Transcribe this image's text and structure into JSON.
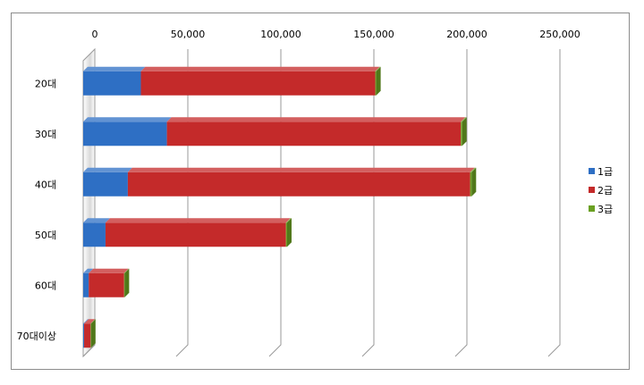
{
  "chart_data": {
    "type": "bar",
    "orientation": "horizontal",
    "stacked": true,
    "three_d": true,
    "categories": [
      "20대",
      "30대",
      "40대",
      "50대",
      "60대",
      "70대이상"
    ],
    "series": [
      {
        "name": "1급",
        "color": "#2e6fc4",
        "values": [
          31000,
          45000,
          24000,
          12000,
          3000,
          500
        ]
      },
      {
        "name": "2급",
        "color": "#c42a2a",
        "values": [
          126000,
          158000,
          184000,
          97000,
          19000,
          3500
        ]
      },
      {
        "name": "3급",
        "color": "#6aa022",
        "values": [
          500,
          700,
          800,
          600,
          300,
          100
        ]
      }
    ],
    "x_ticks": [
      "0",
      "50,000",
      "100,000",
      "150,000",
      "200,000",
      "250,000"
    ],
    "xlim": [
      0,
      250000
    ],
    "x_axis_position": "top",
    "grid": true,
    "legend_position": "right"
  }
}
